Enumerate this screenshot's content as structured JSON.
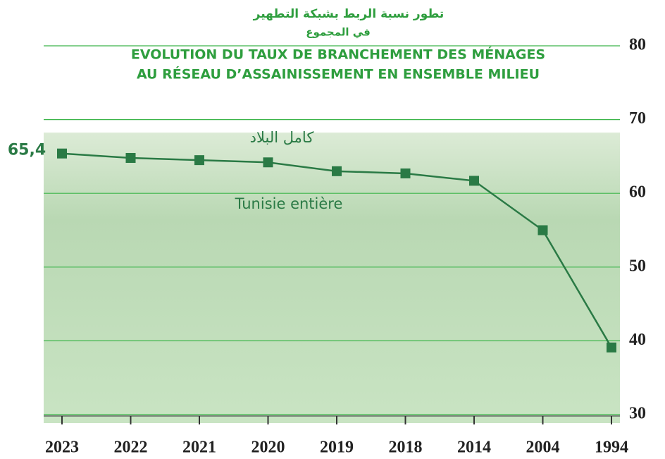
{
  "chart_data": {
    "type": "line",
    "title_ar": [
      "تطور نسبة الربط بشبكة التطهير",
      "في المجموع"
    ],
    "title": [
      "EVOLUTION DU TAUX DE BRANCHEMENT DES MÉNAGES",
      "AU RÉSEAU D’ASSAINISSEMENT EN ENSEMBLE MILIEU"
    ],
    "categories": [
      "2023",
      "2022",
      "2021",
      "2020",
      "2019",
      "2018",
      "2014",
      "2004",
      "1994"
    ],
    "series": [
      {
        "name": "Tunisie entière",
        "name_ar": "كامل البلاد",
        "color": "#2a7a45",
        "values": [
          65.4,
          64.8,
          64.5,
          64.2,
          63.0,
          62.7,
          61.7,
          55.0,
          39.1
        ],
        "value_labels": [
          "65,4",
          null,
          null,
          null,
          null,
          null,
          null,
          null,
          null
        ]
      }
    ],
    "ylim": [
      30,
      80
    ],
    "yticks": [
      30,
      40,
      50,
      60,
      70,
      80
    ],
    "grid": true,
    "grid_color": "#3cb54a"
  }
}
